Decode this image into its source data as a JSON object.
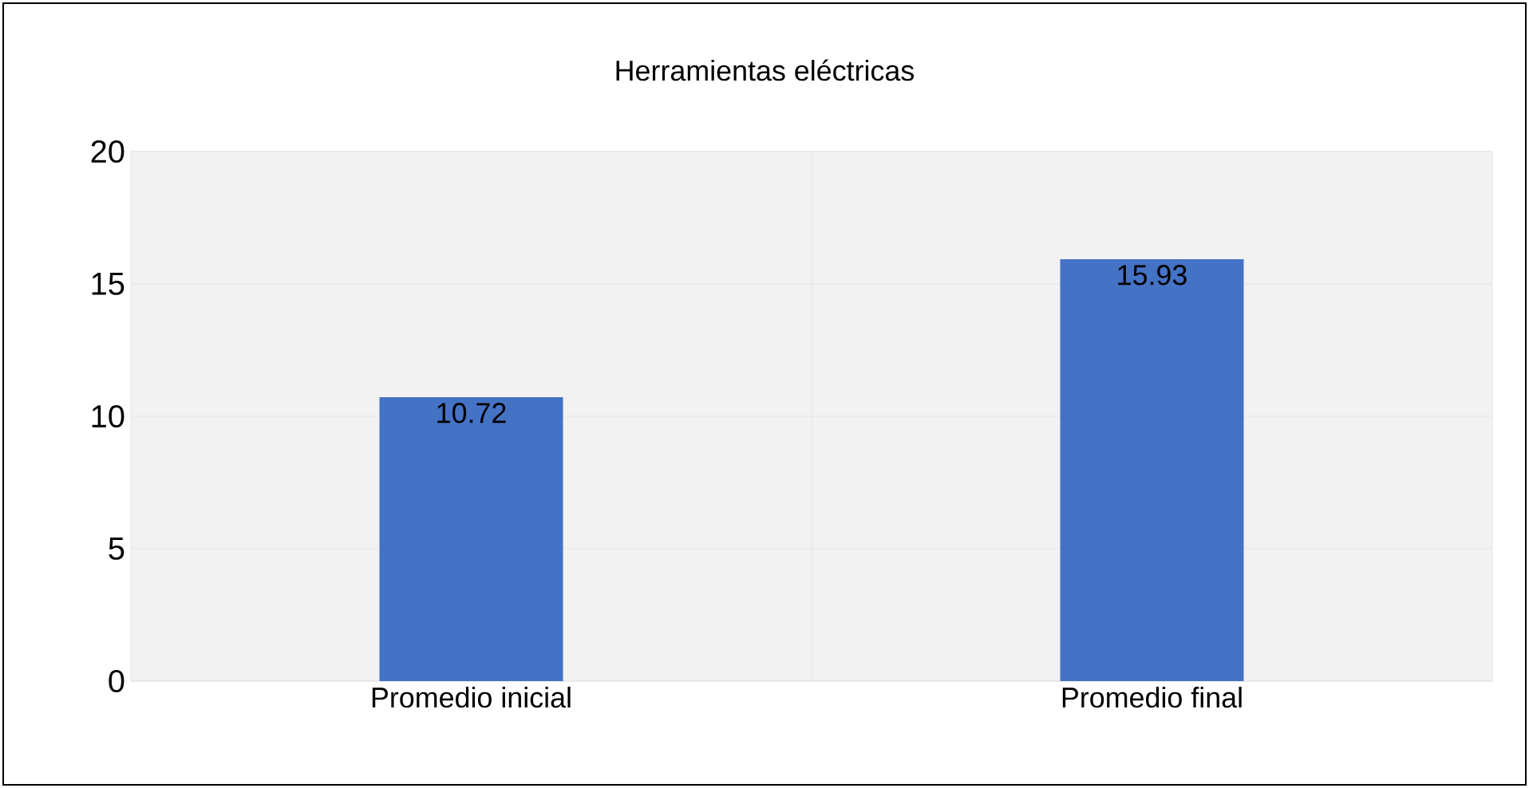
{
  "chart_data": {
    "type": "bar",
    "title": "Herramientas eléctricas",
    "categories": [
      "Promedio inicial",
      "Promedio final"
    ],
    "values": [
      10.72,
      15.93
    ],
    "color": "#4472c4",
    "ylim": [
      0,
      20
    ],
    "yticks": [
      0,
      5,
      10,
      15,
      20
    ],
    "grid": true,
    "data_labels": true
  }
}
